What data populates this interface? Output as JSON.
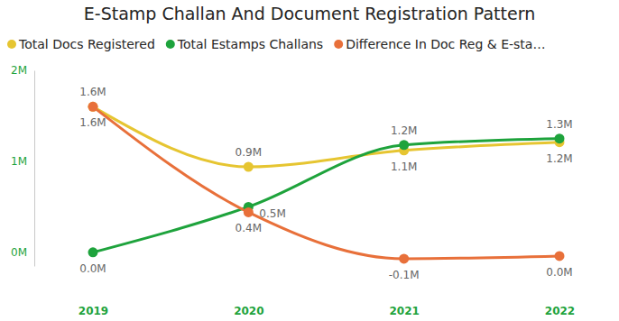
{
  "chart_data": {
    "type": "line",
    "title": "E-Stamp Challan And Document Registration Pattern",
    "categories": [
      "2019",
      "2020",
      "2021",
      "2022"
    ],
    "series": [
      {
        "name": "Total Docs Registered",
        "color": "#e6c531",
        "values": [
          1.6,
          0.94,
          1.12,
          1.21
        ],
        "value_labels": [
          "1.6M",
          "0.9M",
          "1.1M",
          "1.2M"
        ]
      },
      {
        "name": "Total Estamps Challans",
        "color": "#1ea33c",
        "values": [
          0,
          0.5,
          1.18,
          1.25
        ],
        "value_labels": [
          "0.0M",
          "0.5M",
          "1.2M",
          "1.3M"
        ]
      },
      {
        "name": "Difference In Doc Reg & E-sta…",
        "color": "#e8703a",
        "values": [
          1.6,
          0.44,
          -0.07,
          -0.04
        ],
        "value_labels": [
          "1.6M",
          "0.4M",
          "-0.1M",
          "0.0M"
        ]
      }
    ],
    "ylim": [
      -0.15,
      2
    ],
    "yticks": [
      {
        "value": 0,
        "label": "0M"
      },
      {
        "value": 1,
        "label": "1M"
      },
      {
        "value": 2,
        "label": "2M"
      }
    ],
    "grid": false,
    "legend": "top",
    "data_labels": true,
    "marker": "circle",
    "line_style": "solid"
  }
}
